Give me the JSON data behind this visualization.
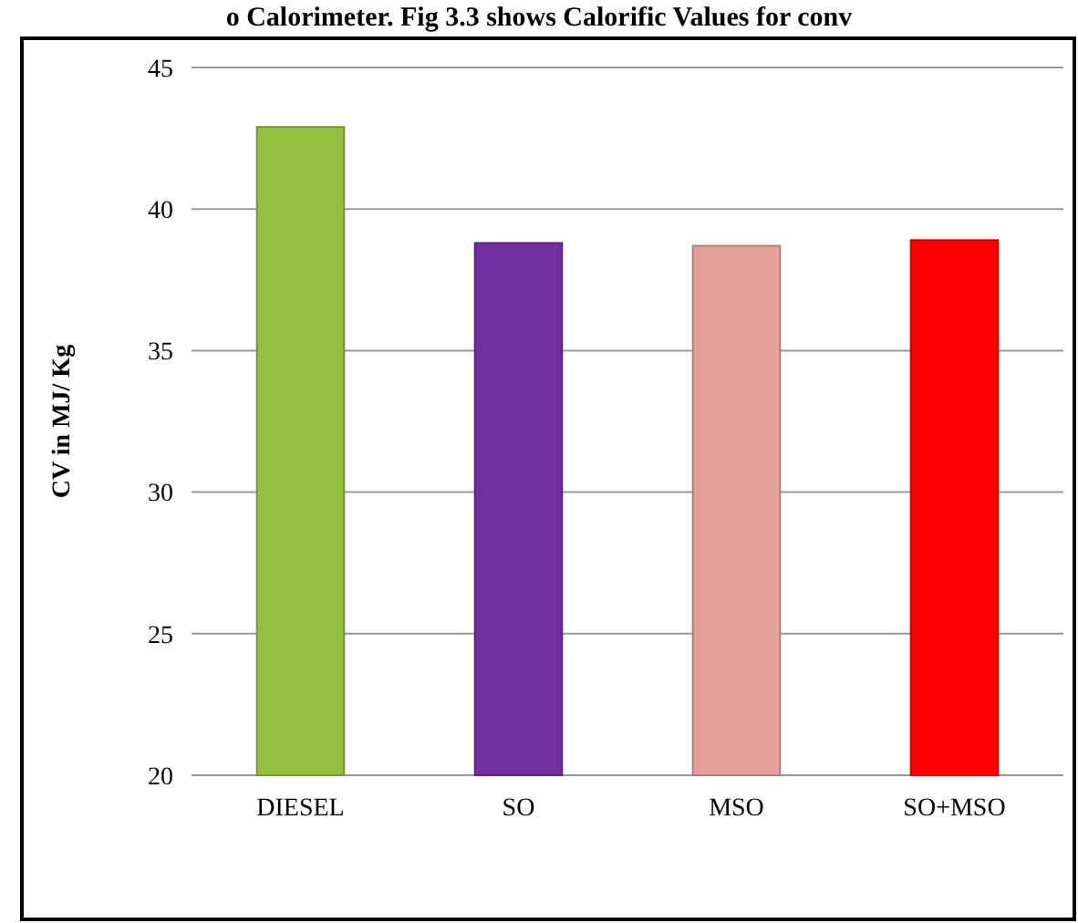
{
  "chart_data": {
    "type": "bar",
    "ylabel": "CV in MJ/ Kg",
    "categories": [
      "DIESEL",
      "SO",
      "MSO",
      "SO+MSO"
    ],
    "values": [
      42.9,
      38.8,
      38.7,
      38.9
    ],
    "colors": [
      "#92c13e",
      "#7030a0",
      "#e6a09c",
      "#ff0000"
    ],
    "ylim": [
      20,
      45
    ],
    "yticks": [
      20,
      25,
      30,
      35,
      40,
      45
    ],
    "grid": "y",
    "annotations": [
      "o Calorimeter. Fig 3.3 shows Calorific Values for conv"
    ]
  }
}
